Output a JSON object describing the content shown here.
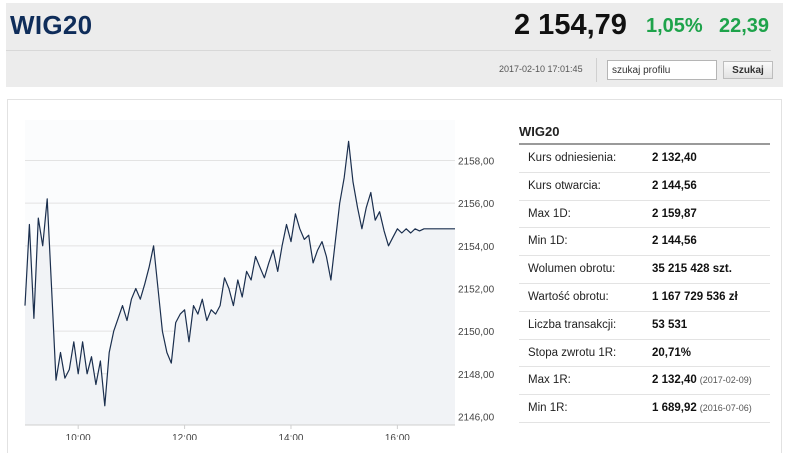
{
  "header": {
    "title": "WIG20",
    "price": "2 154,79",
    "change_pct": "1,05%",
    "change_abs": "22,39",
    "timestamp": "2017-02-10 17:01:45",
    "search_value": "szukaj profilu",
    "search_button": "Szukaj"
  },
  "colors": {
    "title": "#0f2d5a",
    "gain": "#1ea34b",
    "line": "#1b2f4e",
    "area": "#f1f3f6"
  },
  "stats": {
    "title": "WIG20",
    "rows": [
      {
        "label": "Kurs odniesienia:",
        "value": "2 132,40",
        "date": ""
      },
      {
        "label": "Kurs otwarcia:",
        "value": "2 144,56",
        "date": ""
      },
      {
        "label": "Max 1D:",
        "value": "2 159,87",
        "date": ""
      },
      {
        "label": "Min 1D:",
        "value": "2 144,56",
        "date": ""
      },
      {
        "label": "Wolumen obrotu:",
        "value": "35 215 428 szt.",
        "date": ""
      },
      {
        "label": "Wartość obrotu:",
        "value": "1 167 729 536 zł",
        "date": ""
      },
      {
        "label": "Liczba transakcji:",
        "value": "53 531",
        "date": ""
      },
      {
        "label": "Stopa zwrotu 1R:",
        "value": "20,71%",
        "date": ""
      },
      {
        "label": "Max 1R:",
        "value": "2 132,40",
        "date": "(2017-02-09)"
      },
      {
        "label": "Min 1R:",
        "value": "1 689,92",
        "date": "(2016-07-06)"
      }
    ]
  },
  "chart_data": {
    "type": "line",
    "title": "",
    "xlabel": "",
    "ylabel": "",
    "x_ticks": [
      "10:00",
      "12:00",
      "14:00",
      "16:00"
    ],
    "y_ticks": [
      "2146,00",
      "2148,00",
      "2150,00",
      "2152,00",
      "2154,00",
      "2156,00",
      "2158,00"
    ],
    "ylim": [
      2145.6,
      2159.9
    ],
    "xlim": [
      "09:00",
      "17:05"
    ],
    "grid": "horizontal",
    "series": [
      {
        "x": [
          "09:00",
          "09:05",
          "09:10",
          "09:15",
          "09:20",
          "09:25",
          "09:30",
          "09:35",
          "09:40",
          "09:45",
          "09:50",
          "09:55",
          "10:00",
          "10:05",
          "10:10",
          "10:15",
          "10:20",
          "10:25",
          "10:30",
          "10:35",
          "10:40",
          "10:45",
          "10:50",
          "10:55",
          "11:00",
          "11:05",
          "11:10",
          "11:15",
          "11:20",
          "11:25",
          "11:30",
          "11:35",
          "11:40",
          "11:45",
          "11:50",
          "11:55",
          "12:00",
          "12:05",
          "12:10",
          "12:15",
          "12:20",
          "12:25",
          "12:30",
          "12:35",
          "12:40",
          "12:45",
          "12:50",
          "12:55",
          "13:00",
          "13:05",
          "13:10",
          "13:15",
          "13:20",
          "13:25",
          "13:30",
          "13:35",
          "13:40",
          "13:45",
          "13:50",
          "13:55",
          "14:00",
          "14:05",
          "14:10",
          "14:15",
          "14:20",
          "14:25",
          "14:30",
          "14:35",
          "14:40",
          "14:45",
          "14:50",
          "14:55",
          "15:00",
          "15:05",
          "15:10",
          "15:15",
          "15:20",
          "15:25",
          "15:30",
          "15:35",
          "15:40",
          "15:45",
          "15:50",
          "15:55",
          "16:00",
          "16:05",
          "16:10",
          "16:15",
          "16:20",
          "16:25",
          "16:30",
          "16:35",
          "16:40",
          "16:45",
          "16:50",
          "16:55",
          "17:00",
          "17:05"
        ],
        "y": [
          2151.2,
          2155.0,
          2150.6,
          2155.3,
          2154.0,
          2156.2,
          2152.0,
          2147.7,
          2149.0,
          2147.8,
          2148.2,
          2149.5,
          2148.0,
          2149.5,
          2148.0,
          2148.8,
          2147.5,
          2148.6,
          2146.5,
          2149.0,
          2150.0,
          2150.6,
          2151.2,
          2150.5,
          2151.5,
          2152.0,
          2151.5,
          2152.2,
          2153.0,
          2154.0,
          2152.0,
          2150.0,
          2149.0,
          2148.5,
          2150.4,
          2150.8,
          2151.0,
          2149.5,
          2151.2,
          2150.8,
          2151.5,
          2150.5,
          2151.0,
          2150.8,
          2151.2,
          2152.5,
          2152.0,
          2151.2,
          2152.4,
          2151.6,
          2152.8,
          2152.4,
          2153.5,
          2153.0,
          2152.5,
          2153.2,
          2153.8,
          2152.8,
          2154.0,
          2155.0,
          2154.2,
          2155.5,
          2154.8,
          2154.3,
          2154.5,
          2153.2,
          2153.8,
          2154.2,
          2153.5,
          2152.4,
          2154.2,
          2156.0,
          2157.2,
          2158.9,
          2157.0,
          2155.8,
          2154.8,
          2155.8,
          2156.5,
          2155.2,
          2155.6,
          2154.7,
          2154.0,
          2154.4,
          2154.8,
          2154.6,
          2154.8,
          2154.6,
          2154.8,
          2154.7,
          2154.8,
          2154.8,
          2154.8,
          2154.8,
          2154.8,
          2154.8,
          2154.8,
          2154.8
        ]
      }
    ]
  }
}
